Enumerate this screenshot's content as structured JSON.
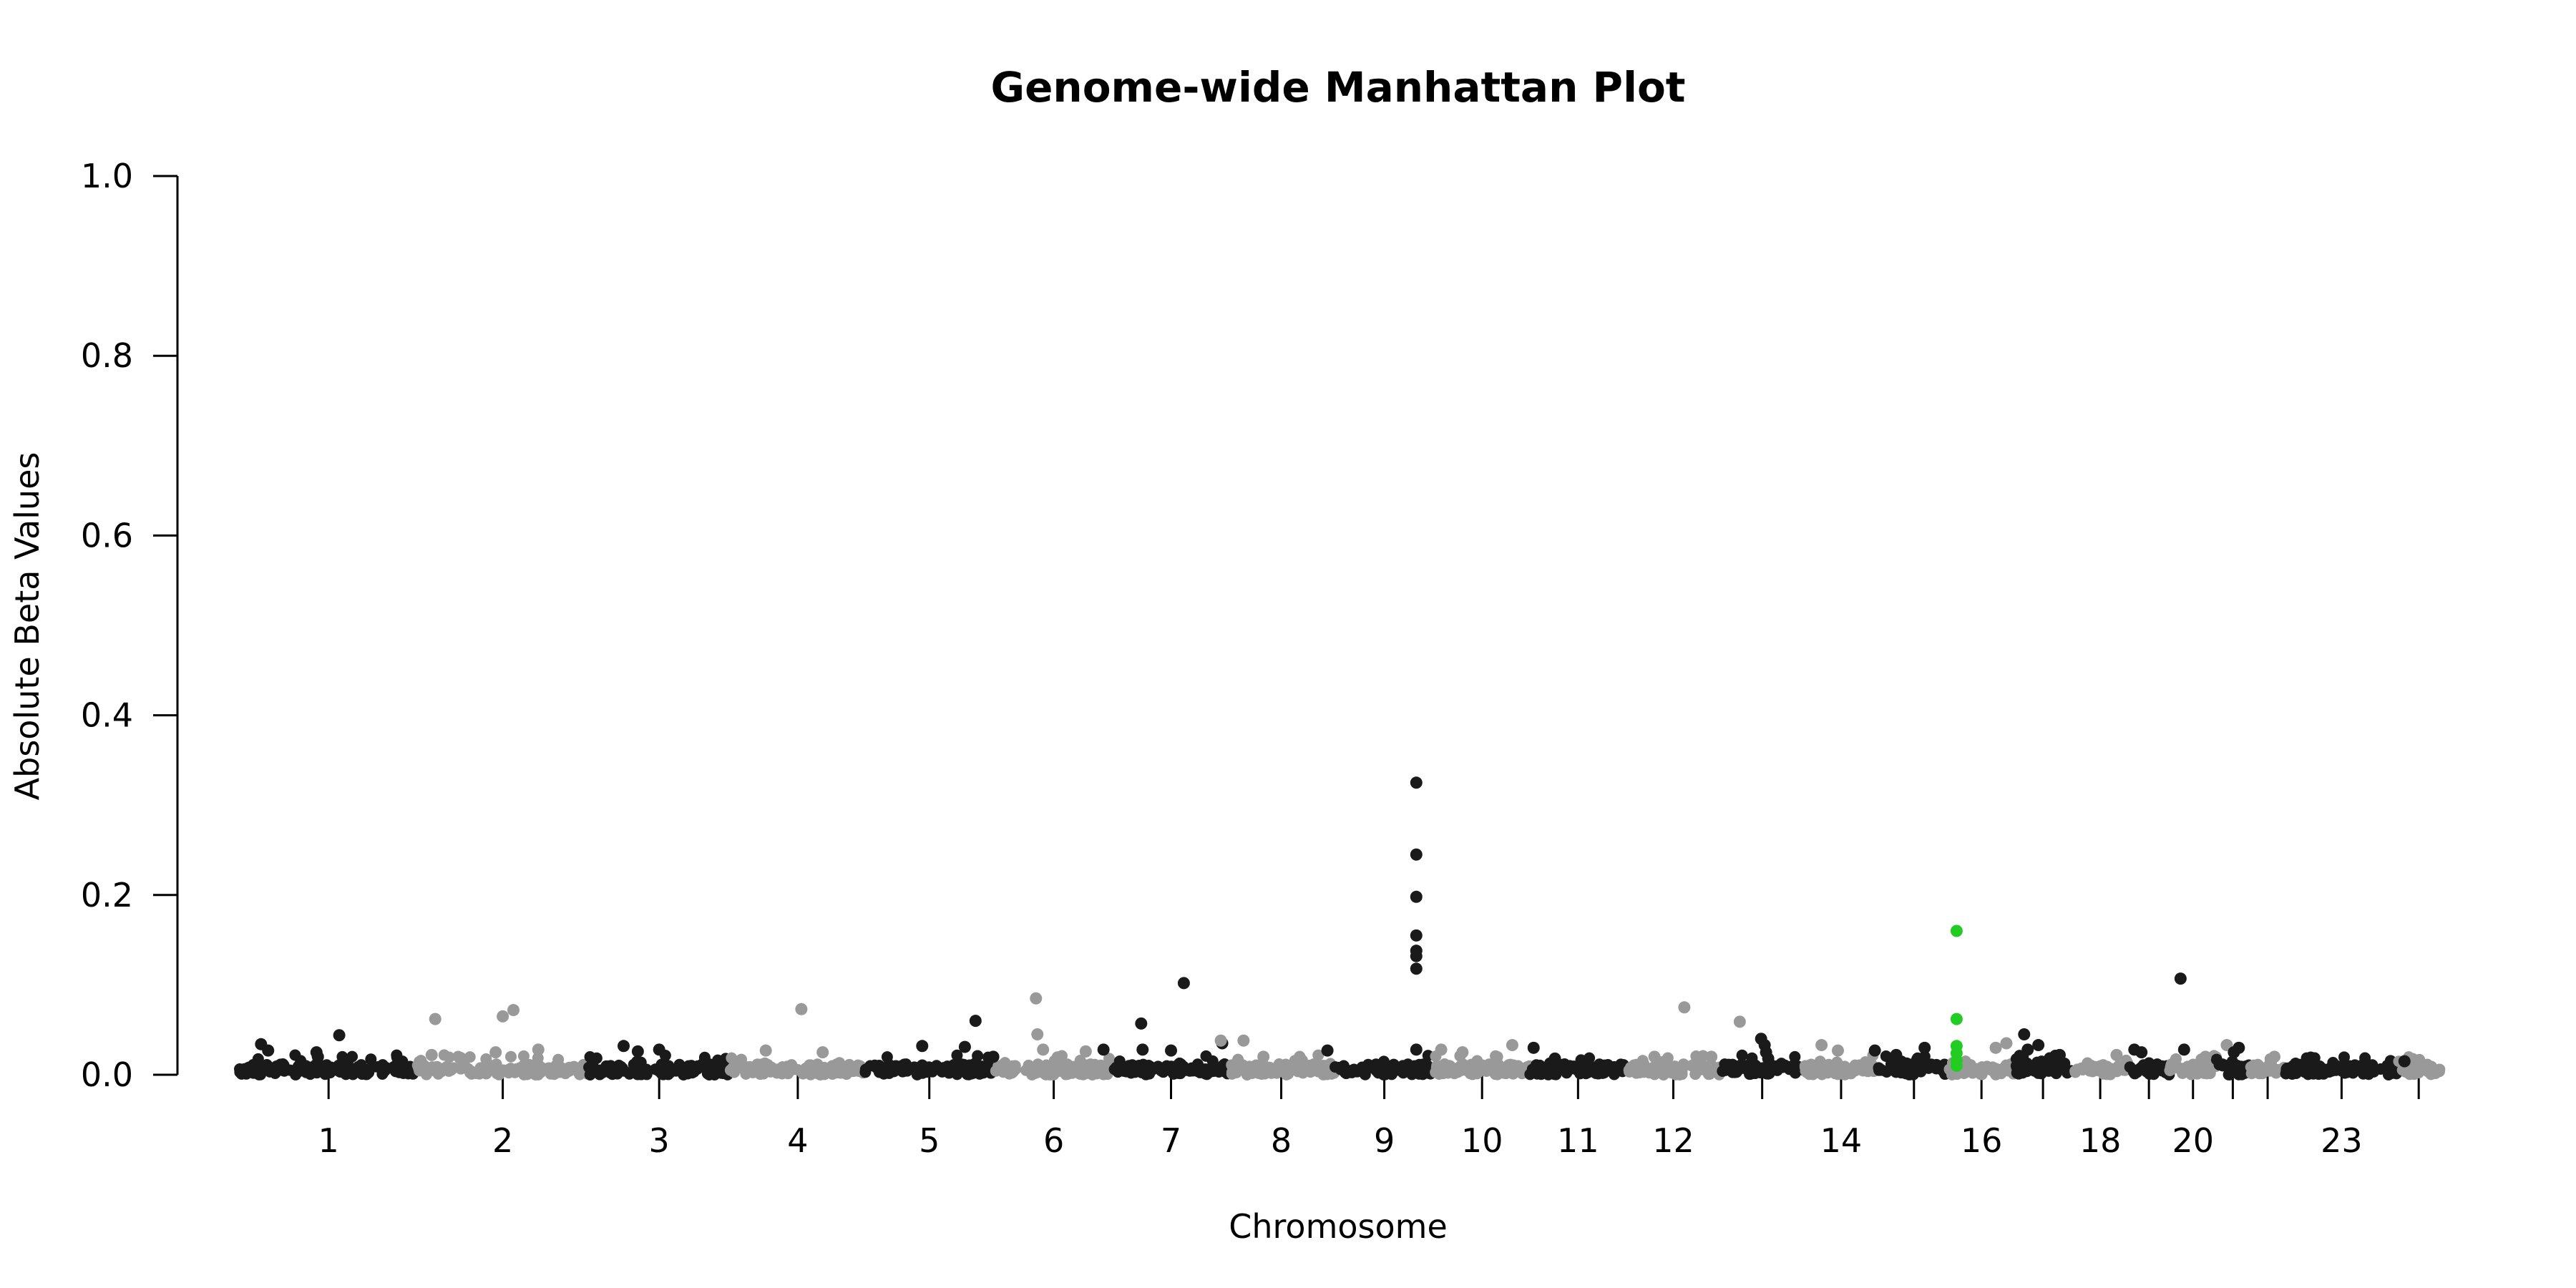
{
  "chart_data": {
    "type": "scatter",
    "title": "Genome-wide Manhattan Plot",
    "xlabel": "Chromosome",
    "ylabel": "Absolute Beta Values",
    "ylim": [
      0,
      1.0
    ],
    "yticks": [
      "0.0",
      "0.2",
      "0.4",
      "0.6",
      "0.8",
      "1.0"
    ],
    "grid": false,
    "legend": "none",
    "colors": {
      "dark": "#1a1a1a",
      "light": "#999999",
      "highlight": "#22cc22"
    },
    "chromosomes": [
      {
        "label": "1",
        "start": 0,
        "end": 250
      },
      {
        "label": "2",
        "start": 250,
        "end": 490
      },
      {
        "label": "3",
        "start": 490,
        "end": 690
      },
      {
        "label": "4",
        "start": 690,
        "end": 880
      },
      {
        "label": "5",
        "start": 880,
        "end": 1060
      },
      {
        "label": "6",
        "start": 1060,
        "end": 1230
      },
      {
        "label": "7",
        "start": 1230,
        "end": 1390
      },
      {
        "label": "8",
        "start": 1390,
        "end": 1540
      },
      {
        "label": "9",
        "start": 1540,
        "end": 1680
      },
      {
        "label": "10",
        "start": 1680,
        "end": 1815
      },
      {
        "label": "11",
        "start": 1815,
        "end": 1950
      },
      {
        "label": "12",
        "start": 1950,
        "end": 2083
      },
      {
        "label": "",
        "start": 2083,
        "end": 2200
      },
      {
        "label": "14",
        "start": 2200,
        "end": 2305
      },
      {
        "label": "",
        "start": 2305,
        "end": 2405
      },
      {
        "label": "16",
        "start": 2405,
        "end": 2495
      },
      {
        "label": "",
        "start": 2495,
        "end": 2578
      },
      {
        "label": "18",
        "start": 2578,
        "end": 2656
      },
      {
        "label": "",
        "start": 2656,
        "end": 2715
      },
      {
        "label": "20",
        "start": 2715,
        "end": 2780
      },
      {
        "label": "",
        "start": 2780,
        "end": 2827
      },
      {
        "label": "",
        "start": 2827,
        "end": 2878
      },
      {
        "label": "23",
        "start": 2878,
        "end": 3035
      },
      {
        "label": "",
        "start": 3035,
        "end": 3095
      }
    ],
    "points": [
      {
        "x": 30,
        "y": 0.034,
        "group": "dark"
      },
      {
        "x": 40,
        "y": 0.027,
        "group": "dark"
      },
      {
        "x": 108,
        "y": 0.025,
        "group": "dark"
      },
      {
        "x": 110,
        "y": 0.02,
        "group": "dark"
      },
      {
        "x": 140,
        "y": 0.044,
        "group": "dark"
      },
      {
        "x": 275,
        "y": 0.062,
        "group": "light"
      },
      {
        "x": 270,
        "y": 0.022,
        "group": "light"
      },
      {
        "x": 370,
        "y": 0.065,
        "group": "light"
      },
      {
        "x": 385,
        "y": 0.072,
        "group": "light"
      },
      {
        "x": 360,
        "y": 0.025,
        "group": "light"
      },
      {
        "x": 420,
        "y": 0.028,
        "group": "light"
      },
      {
        "x": 540,
        "y": 0.032,
        "group": "dark"
      },
      {
        "x": 590,
        "y": 0.028,
        "group": "dark"
      },
      {
        "x": 560,
        "y": 0.026,
        "group": "dark"
      },
      {
        "x": 790,
        "y": 0.073,
        "group": "light"
      },
      {
        "x": 740,
        "y": 0.027,
        "group": "light"
      },
      {
        "x": 820,
        "y": 0.025,
        "group": "light"
      },
      {
        "x": 960,
        "y": 0.032,
        "group": "dark"
      },
      {
        "x": 1035,
        "y": 0.06,
        "group": "dark"
      },
      {
        "x": 1020,
        "y": 0.031,
        "group": "dark"
      },
      {
        "x": 1060,
        "y": 0.02,
        "group": "dark"
      },
      {
        "x": 1120,
        "y": 0.085,
        "group": "light"
      },
      {
        "x": 1122,
        "y": 0.045,
        "group": "light"
      },
      {
        "x": 1130,
        "y": 0.028,
        "group": "light"
      },
      {
        "x": 1190,
        "y": 0.026,
        "group": "light"
      },
      {
        "x": 1215,
        "y": 0.028,
        "group": "dark"
      },
      {
        "x": 1268,
        "y": 0.057,
        "group": "dark"
      },
      {
        "x": 1270,
        "y": 0.028,
        "group": "dark"
      },
      {
        "x": 1328,
        "y": 0.102,
        "group": "dark"
      },
      {
        "x": 1310,
        "y": 0.027,
        "group": "dark"
      },
      {
        "x": 1382,
        "y": 0.035,
        "group": "dark"
      },
      {
        "x": 1380,
        "y": 0.038,
        "group": "light"
      },
      {
        "x": 1412,
        "y": 0.038,
        "group": "light"
      },
      {
        "x": 1440,
        "y": 0.02,
        "group": "light"
      },
      {
        "x": 1530,
        "y": 0.027,
        "group": "dark"
      },
      {
        "x": 1655,
        "y": 0.325,
        "group": "dark"
      },
      {
        "x": 1655,
        "y": 0.245,
        "group": "dark"
      },
      {
        "x": 1655,
        "y": 0.198,
        "group": "dark"
      },
      {
        "x": 1655,
        "y": 0.155,
        "group": "dark"
      },
      {
        "x": 1655,
        "y": 0.138,
        "group": "dark"
      },
      {
        "x": 1655,
        "y": 0.132,
        "group": "dark"
      },
      {
        "x": 1655,
        "y": 0.118,
        "group": "dark"
      },
      {
        "x": 1655,
        "y": 0.028,
        "group": "dark"
      },
      {
        "x": 1690,
        "y": 0.028,
        "group": "light"
      },
      {
        "x": 1720,
        "y": 0.025,
        "group": "light"
      },
      {
        "x": 1790,
        "y": 0.033,
        "group": "light"
      },
      {
        "x": 1820,
        "y": 0.03,
        "group": "dark"
      },
      {
        "x": 1850,
        "y": 0.018,
        "group": "dark"
      },
      {
        "x": 2032,
        "y": 0.075,
        "group": "light"
      },
      {
        "x": 1990,
        "y": 0.02,
        "group": "light"
      },
      {
        "x": 2070,
        "y": 0.02,
        "group": "light"
      },
      {
        "x": 2110,
        "y": 0.059,
        "group": "light"
      },
      {
        "x": 2140,
        "y": 0.04,
        "group": "dark"
      },
      {
        "x": 2145,
        "y": 0.033,
        "group": "dark"
      },
      {
        "x": 2147,
        "y": 0.025,
        "group": "dark"
      },
      {
        "x": 2150,
        "y": 0.018,
        "group": "dark"
      },
      {
        "x": 2225,
        "y": 0.033,
        "group": "light"
      },
      {
        "x": 2248,
        "y": 0.027,
        "group": "light"
      },
      {
        "x": 2300,
        "y": 0.027,
        "group": "dark"
      },
      {
        "x": 2370,
        "y": 0.03,
        "group": "dark"
      },
      {
        "x": 2330,
        "y": 0.022,
        "group": "dark"
      },
      {
        "x": 2415,
        "y": 0.16,
        "group": "highlight"
      },
      {
        "x": 2415,
        "y": 0.062,
        "group": "highlight"
      },
      {
        "x": 2415,
        "y": 0.032,
        "group": "highlight"
      },
      {
        "x": 2415,
        "y": 0.024,
        "group": "highlight"
      },
      {
        "x": 2415,
        "y": 0.016,
        "group": "highlight"
      },
      {
        "x": 2415,
        "y": 0.01,
        "group": "highlight"
      },
      {
        "x": 2470,
        "y": 0.03,
        "group": "light"
      },
      {
        "x": 2485,
        "y": 0.035,
        "group": "light"
      },
      {
        "x": 2510,
        "y": 0.045,
        "group": "dark"
      },
      {
        "x": 2530,
        "y": 0.033,
        "group": "dark"
      },
      {
        "x": 2515,
        "y": 0.028,
        "group": "dark"
      },
      {
        "x": 2560,
        "y": 0.022,
        "group": "dark"
      },
      {
        "x": 2640,
        "y": 0.022,
        "group": "light"
      },
      {
        "x": 2665,
        "y": 0.028,
        "group": "dark"
      },
      {
        "x": 2675,
        "y": 0.025,
        "group": "dark"
      },
      {
        "x": 2730,
        "y": 0.107,
        "group": "dark"
      },
      {
        "x": 2735,
        "y": 0.028,
        "group": "dark"
      },
      {
        "x": 2795,
        "y": 0.033,
        "group": "light"
      },
      {
        "x": 2765,
        "y": 0.02,
        "group": "light"
      },
      {
        "x": 2812,
        "y": 0.03,
        "group": "dark"
      },
      {
        "x": 2805,
        "y": 0.025,
        "group": "dark"
      },
      {
        "x": 2862,
        "y": 0.02,
        "group": "light"
      },
      {
        "x": 3045,
        "y": 0.015,
        "group": "dark"
      },
      {
        "x": 2990,
        "y": 0.008,
        "group": "dark"
      }
    ]
  }
}
